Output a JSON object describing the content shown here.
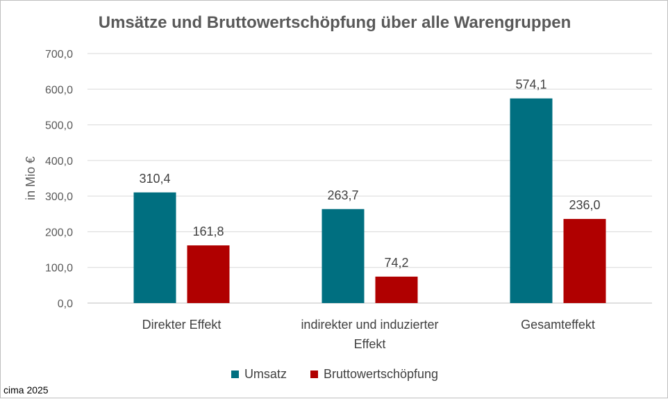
{
  "chart_data": {
    "type": "bar",
    "title": "Umsätze und Bruttowertschöpfung über alle Warengruppen",
    "ylabel": "in Mio €",
    "xlabel": "",
    "ylim": [
      0,
      700
    ],
    "yticks": [
      "0,0",
      "100,0",
      "200,0",
      "300,0",
      "400,0",
      "500,0",
      "600,0",
      "700,0"
    ],
    "categories": [
      [
        "Direkter Effekt"
      ],
      [
        "indirekter und induzierter",
        "Effekt"
      ],
      [
        "Gesamteffekt"
      ]
    ],
    "series": [
      {
        "name": "Umsatz",
        "color": "#006F80",
        "values": [
          310.4,
          263.7,
          574.1
        ],
        "labels": [
          "310,4",
          "263,7",
          "574,1"
        ]
      },
      {
        "name": "Bruttowertschöpfung",
        "color": "#B00000",
        "values": [
          161.8,
          74.2,
          236.0
        ],
        "labels": [
          "161,8",
          "74,2",
          "236,0"
        ]
      }
    ],
    "grid": true,
    "legend_position": "bottom"
  },
  "source_note": "cima 2025"
}
